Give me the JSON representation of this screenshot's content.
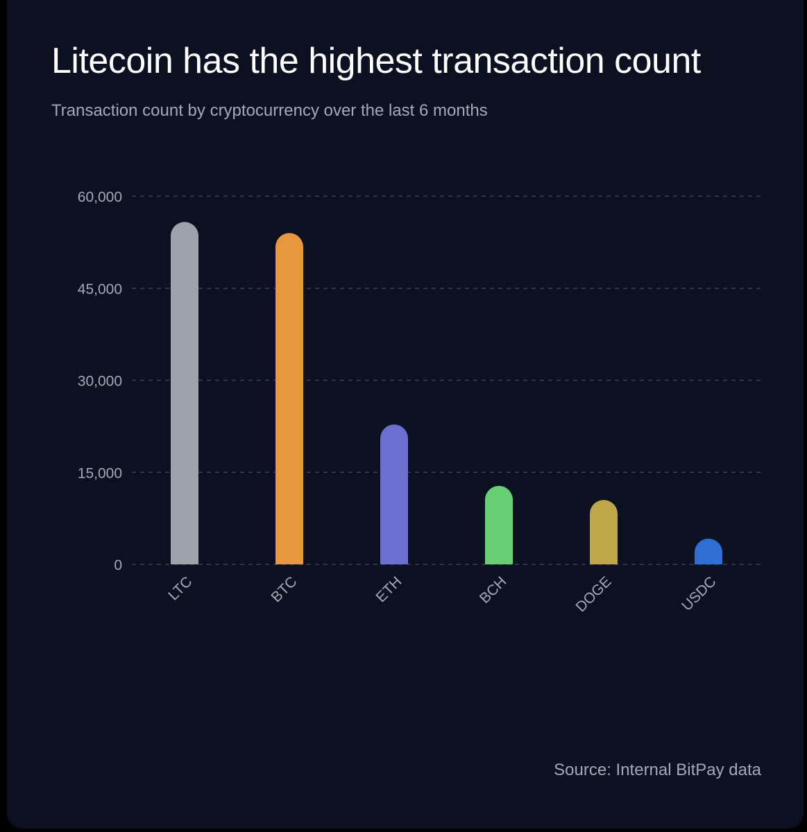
{
  "title": "Litecoin has the highest transaction count",
  "subtitle": "Transaction count by cryptocurrency over the last 6 months",
  "source": "Source: Internal BitPay data",
  "colors": {
    "background": "#0b1120",
    "grid": "#3a4152",
    "tick_text": "#a3a9b5"
  },
  "chart_data": {
    "type": "bar",
    "categories": [
      "LTC",
      "BTC",
      "ETH",
      "BCH",
      "DOGE",
      "USDC"
    ],
    "values": [
      55800,
      54000,
      22800,
      12800,
      10500,
      4200
    ],
    "colors": [
      "#9ca3ab",
      "#e8963f",
      "#6b6fcf",
      "#67ce74",
      "#bfa64a",
      "#2f6fd4"
    ],
    "ylim": [
      0,
      60000
    ],
    "yticks": [
      0,
      15000,
      30000,
      45000,
      60000
    ],
    "ytick_labels": [
      "0",
      "15,000",
      "30,000",
      "45,000",
      "60,000"
    ],
    "xlabel": "",
    "ylabel": "",
    "grid": true,
    "legend": "none"
  }
}
